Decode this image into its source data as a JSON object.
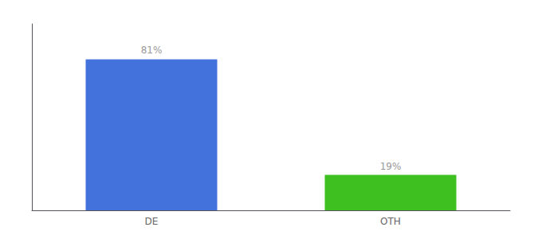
{
  "chart_data": {
    "type": "bar",
    "categories": [
      "DE",
      "OTH"
    ],
    "values": [
      81,
      19
    ],
    "value_labels": [
      "81%",
      "19%"
    ],
    "colors": [
      "#4472DD",
      "#3DC020"
    ],
    "ylim": [
      0,
      100
    ],
    "data_labels": true,
    "tick_labels": "x",
    "grid": false
  }
}
